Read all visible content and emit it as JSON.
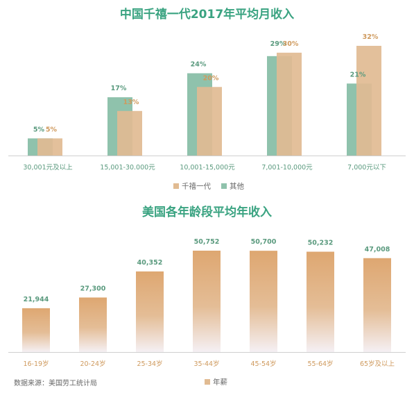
{
  "colors": {
    "green": "#8fc2ac",
    "tan": "#e1bb92",
    "green_text": "#5a9a7e",
    "tan_text": "#cf9a5e",
    "title_green": "#3aa381",
    "axis": "#cfcfcf"
  },
  "chart_data": [
    {
      "type": "bar",
      "title": "中国千禧一代2017年平均月收入",
      "categories": [
        "30,001元及以上",
        "15,001-30.000元",
        "10,001-15,000元",
        "7,001-10,000元",
        "7,000元以下"
      ],
      "series": [
        {
          "name": "千禧一代",
          "values": [
            5,
            13,
            20,
            30,
            32
          ],
          "labels": [
            "5%",
            "13%",
            "20%",
            "30%",
            "32%"
          ]
        },
        {
          "name": "其他",
          "values": [
            5,
            17,
            24,
            29,
            21
          ],
          "labels": [
            "5%",
            "17%",
            "24%",
            "29%",
            "21%"
          ]
        }
      ],
      "unit": "%",
      "ylim": [
        0,
        32
      ],
      "legend_position": "bottom-right",
      "grid": false
    },
    {
      "type": "bar",
      "title": "美国各年龄段平均年收入",
      "categories": [
        "16-19岁",
        "20-24岁",
        "25-34岁",
        "35-44岁",
        "45-54岁",
        "55-64岁",
        "65岁及以上"
      ],
      "series": [
        {
          "name": "年薪",
          "values": [
            21944,
            27300,
            40352,
            50752,
            50700,
            50232,
            47008
          ],
          "labels": [
            "21,944",
            "27,300",
            "40,352",
            "50,752",
            "50,700",
            "50,232",
            "47,008"
          ]
        }
      ],
      "ylim": [
        0,
        50752
      ],
      "legend_position": "bottom-right",
      "grid": false
    }
  ],
  "source": "数据来源：美国劳工统计局"
}
